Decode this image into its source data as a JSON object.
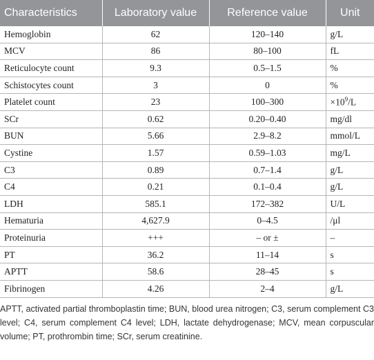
{
  "table": {
    "header": [
      "Characteristics",
      "Laboratory value",
      "Reference value",
      "Unit"
    ],
    "rows": [
      [
        "Hemoglobin",
        "62",
        "120–140",
        "g/L"
      ],
      [
        "MCV",
        "86",
        "80–100",
        "fL"
      ],
      [
        "Reticulocyte count",
        "9.3",
        "0.5–1.5",
        "%"
      ],
      [
        "Schistocytes count",
        "3",
        "0",
        "%"
      ],
      [
        "Platelet count",
        "23",
        "100–300",
        {
          "base": "×10",
          "sup": "9",
          "tail": "/L"
        }
      ],
      [
        "SCr",
        "0.62",
        "0.20–0.40",
        "mg/dl"
      ],
      [
        "BUN",
        "5.66",
        "2.9–8.2",
        "mmol/L"
      ],
      [
        "Cystine",
        "1.57",
        "0.59–1.03",
        "mg/L"
      ],
      [
        "C3",
        "0.89",
        "0.7–1.4",
        "g/L"
      ],
      [
        "C4",
        "0.21",
        "0.1–0.4",
        "g/L"
      ],
      [
        "LDH",
        "585.1",
        "172–382",
        "U/L"
      ],
      [
        "Hematuria",
        "4,627.9",
        "0–4.5",
        "/μl"
      ],
      [
        "Proteinuria",
        "+++",
        "– or ±",
        "–"
      ],
      [
        "PT",
        "36.2",
        "11–14",
        "s"
      ],
      [
        "APTT",
        "58.6",
        "28–45",
        "s"
      ],
      [
        "Fibrinogen",
        "4.26",
        "2–4",
        "g/L"
      ]
    ]
  },
  "footnote": "APTT, activated partial thromboplastin time; BUN, blood urea nitrogen; C3, serum complement C3 level; C4, serum complement C4 level; LDH, lactate dehydrogenase; MCV, mean corpuscular volume; PT, prothrombin time; SCr, serum creatinine."
}
